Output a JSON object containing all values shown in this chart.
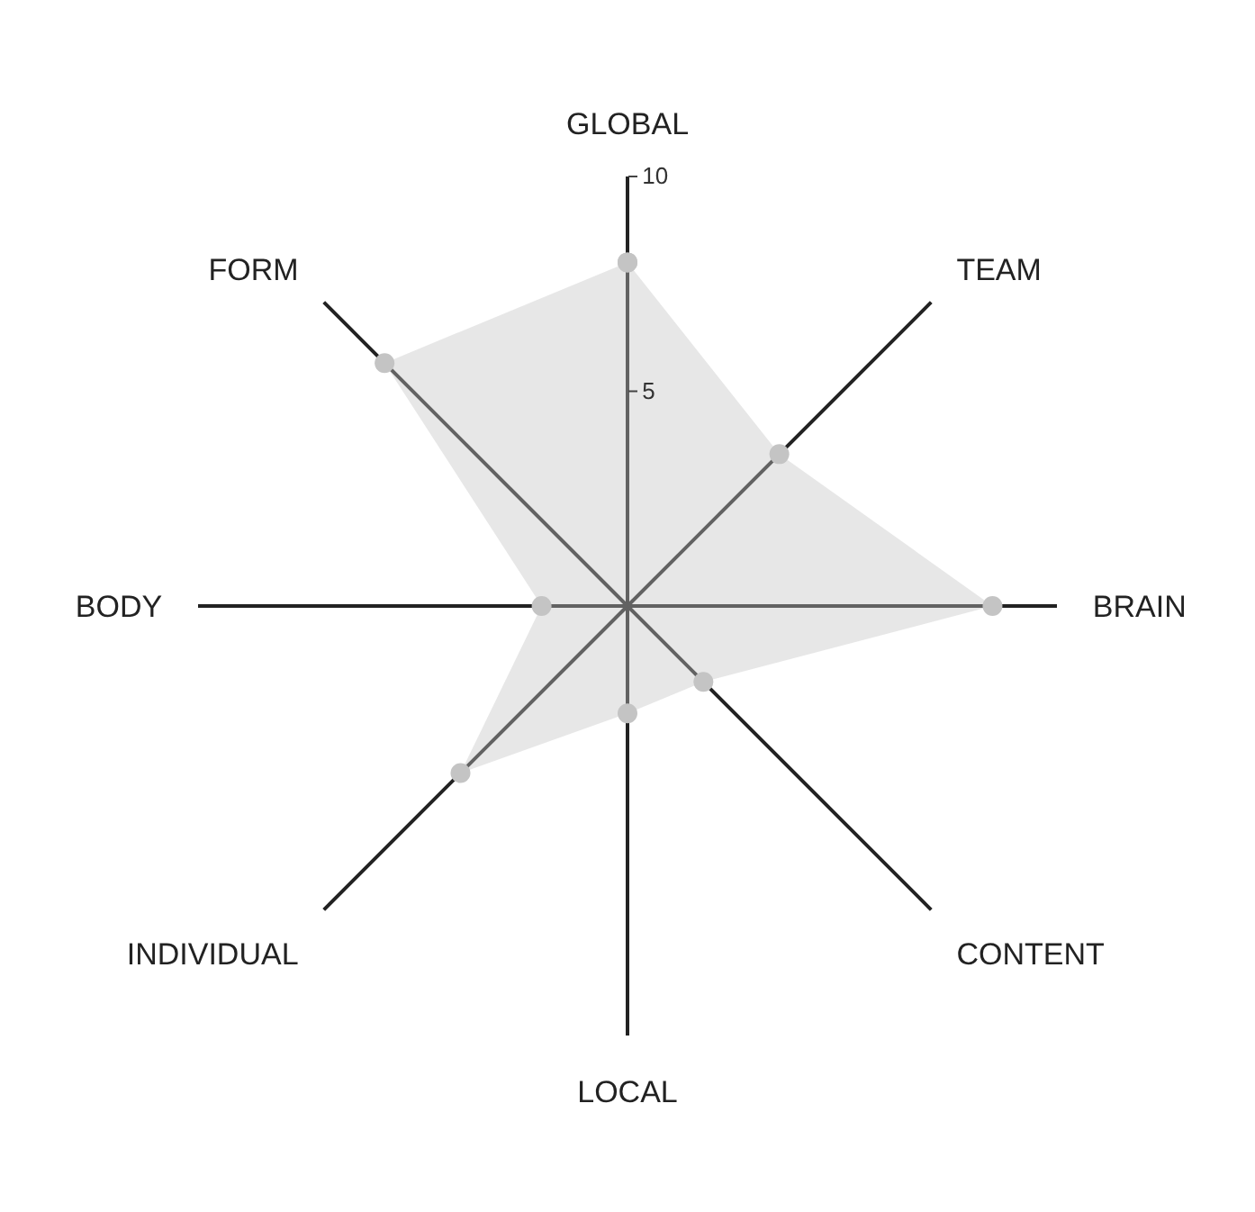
{
  "chart_data": {
    "type": "radar",
    "categories": [
      "GLOBAL",
      "TEAM",
      "BRAIN",
      "CONTENT",
      "LOCAL",
      "INDIVIDUAL",
      "BODY",
      "FORM"
    ],
    "series": [
      {
        "color": "#c4c4c4",
        "values": [
          8,
          5,
          8.5,
          2.5,
          2.5,
          5.5,
          2,
          8
        ]
      }
    ],
    "ylim": [
      0,
      10
    ],
    "yticks": [
      5,
      10
    ],
    "grid": "x",
    "marker": "circle"
  }
}
